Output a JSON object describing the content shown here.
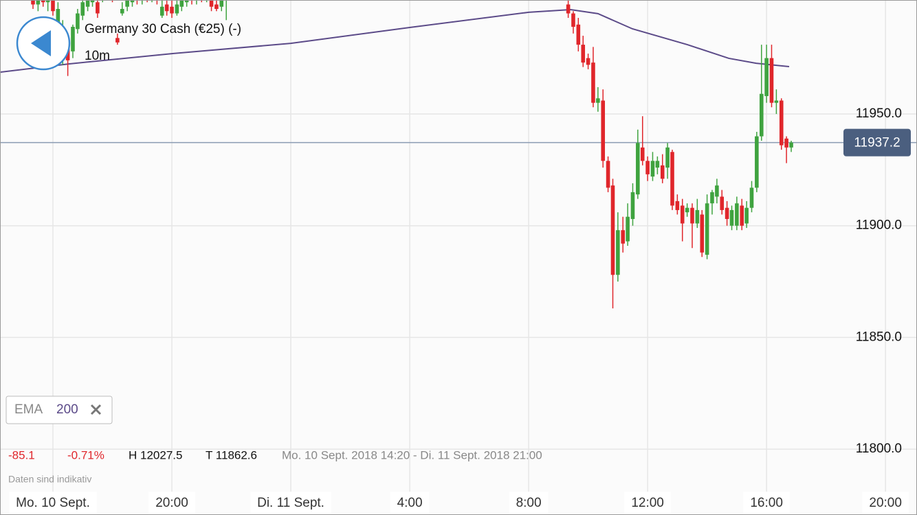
{
  "chart_data": {
    "type": "candlestick",
    "title": "Germany 30 Cash (€25) (-)",
    "interval": "10m",
    "indicator": {
      "name": "EMA",
      "period": "200",
      "color": "#5b4a88",
      "x": [
        14.22,
        16.53,
        20,
        24,
        28,
        32,
        33.41,
        34.33,
        35.49,
        37.34,
        38.73,
        39.65,
        40.76
      ],
      "values": [
        11968.7,
        11972.4,
        11977.0,
        11981.6,
        11988.7,
        11995.5,
        11996.7,
        11994.9,
        11988.1,
        11981.0,
        11974.9,
        11972.7,
        11971.2
      ]
    },
    "stats": {
      "change": "-85.1",
      "change_pct": "-0.71%",
      "high": "H 12027.5",
      "low": "T 11862.6",
      "range": "Mo. 10 Sept. 2018 14:20 - Di. 11 Sept. 2018 21:00",
      "note": "Daten sind indikativ"
    },
    "last_price": 11937.2,
    "up_color": "#3fa33f",
    "down_color": "#e0262b",
    "grid": true,
    "xlim": [
      14.22,
      45.06
    ],
    "xticks": [
      {
        "value": 16,
        "label": "Mo. 10 Sept."
      },
      {
        "value": 20,
        "label": "20:00"
      },
      {
        "value": 24,
        "label": "Di. 11 Sept."
      },
      {
        "value": 28,
        "label": "4:00"
      },
      {
        "value": 32,
        "label": "8:00"
      },
      {
        "value": 36,
        "label": "12:00"
      },
      {
        "value": 40,
        "label": "16:00"
      },
      {
        "value": 44,
        "label": "20:00"
      }
    ],
    "ylim": [
      11781.3,
      12001
    ],
    "yticks": [
      {
        "value": 11800,
        "label": "11800.0"
      },
      {
        "value": 11850,
        "label": "11850.0"
      },
      {
        "value": 11900,
        "label": "11900.0"
      },
      {
        "value": 11950,
        "label": "11950.0"
      }
    ],
    "x": [
      15.33,
      15.5,
      15.67,
      15.83,
      16,
      16.17,
      16.33,
      16.5,
      16.67,
      16.83,
      17,
      17.17,
      17.33,
      17.5,
      17.67,
      17.83,
      18,
      18.17,
      18.33,
      18.5,
      18.67,
      18.83,
      19,
      19.17,
      19.33,
      19.5,
      19.67,
      19.83,
      20,
      20.17,
      20.33,
      20.5,
      20.67,
      20.83,
      21,
      21.17,
      21.33,
      21.5,
      21.67,
      21.83,
      33.33,
      33.5,
      33.67,
      33.83,
      34,
      34.17,
      34.33,
      34.5,
      34.67,
      34.83,
      35,
      35.17,
      35.33,
      35.5,
      35.67,
      35.83,
      36,
      36.17,
      36.33,
      36.5,
      36.67,
      36.83,
      37,
      37.17,
      37.33,
      37.5,
      37.67,
      37.83,
      38,
      38.17,
      38.33,
      38.5,
      38.67,
      38.83,
      39,
      39.17,
      39.33,
      39.5,
      39.67,
      39.83,
      40,
      40.17,
      40.33,
      40.5,
      40.67,
      40.83
    ],
    "open": [
      12004,
      11999,
      12003,
      12000,
      12004,
      11990,
      11978,
      11980,
      11978,
      11988,
      11994,
      11998,
      12000,
      12000,
      12002,
      12003,
      12005,
      11984,
      11995,
      11998,
      12000,
      12003,
      12001,
      12004,
      12002,
      12005,
      11994,
      11999,
      11998,
      11995,
      11998,
      12000,
      12003,
      12001,
      12004,
      12002,
      12003,
      11999,
      11998,
      12001,
      11999,
      11995,
      11990,
      11981,
      11975,
      11973,
      11955,
      11956,
      11929,
      11918,
      11878,
      11898,
      11893,
      11903,
      11914,
      11935,
      11929,
      11922,
      11926,
      11927,
      11926,
      11933,
      11911,
      11909,
      11906,
      11908,
      11901,
      11905,
      11887,
      11910,
      11913,
      11913,
      11908,
      11900,
      11900,
      11909,
      11901,
      11908,
      11917,
      11940,
      11958,
      11975,
      11955,
      11956,
      11939,
      11935
    ],
    "high": [
      12006,
      12005,
      12006,
      12007,
      12006,
      12000,
      11992,
      11982,
      11990,
      11997,
      12002,
      12005,
      12006,
      12002,
      12006,
      12007,
      12007,
      11986,
      12000,
      12003,
      12005,
      12005,
      12006,
      12006,
      12007,
      12007,
      12001,
      12002,
      12001,
      12002,
      12003,
      12005,
      12005,
      12006,
      12006,
      12006,
      12005,
      12002,
      12004,
      12005,
      12001,
      11996,
      11993,
      11985,
      11977,
      11980,
      11962,
      11961,
      11931,
      11921,
      11906,
      11904,
      11910,
      11919,
      11943,
      11949,
      11931,
      11933,
      11931,
      11932,
      11937,
      11934,
      11914,
      11912,
      11910,
      11910,
      11912,
      11907,
      11914,
      11916,
      11921,
      11916,
      11911,
      11909,
      11913,
      11912,
      11911,
      11920,
      11942,
      11981,
      11981,
      11981,
      11961,
      11957,
      11940,
      11938
    ],
    "low": [
      11997,
      11996,
      11998,
      11996,
      11994,
      11985,
      11972,
      11967,
      11975,
      11986,
      11992,
      11996,
      11998,
      11993,
      12000,
      12001,
      12000,
      11981,
      11994,
      11996,
      11998,
      11999,
      11999,
      12000,
      12000,
      11999,
      11993,
      11994,
      11993,
      11994,
      11996,
      11998,
      11999,
      11999,
      12000,
      12000,
      11996,
      11996,
      11996,
      11992,
      11993,
      11986,
      11978,
      11971,
      11970,
      11953,
      11951,
      11926,
      11915,
      11863,
      11875,
      11888,
      11891,
      11900,
      11912,
      11927,
      11920,
      11920,
      11923,
      11919,
      11921,
      11907,
      11905,
      11893,
      11904,
      11890,
      11899,
      11886,
      11885,
      11905,
      11910,
      11905,
      11900,
      11898,
      11898,
      11898,
      11899,
      11906,
      11915,
      11938,
      11955,
      11953,
      11950,
      11934,
      11928,
      11933
    ],
    "close": [
      11999,
      12003,
      12000,
      12004,
      11996,
      11997,
      11989,
      11974,
      11989,
      11995,
      12000,
      12003,
      12004,
      11995,
      12004,
      12005,
      12002,
      11982,
      11997,
      12001,
      12003,
      12001,
      12004,
      12002,
      12005,
      12001,
      11998,
      11996,
      11995,
      11999,
      12001,
      12003,
      12001,
      12004,
      12002,
      12004,
      11998,
      11997,
      12002,
      12003,
      11995,
      11989,
      11981,
      11973,
      11972,
      11955,
      11957,
      11929,
      11917,
      11878,
      11898,
      11892,
      11904,
      11915,
      11937,
      11929,
      11923,
      11929,
      11929,
      11921,
      11935,
      11909,
      11907,
      11901,
      11908,
      11901,
      11907,
      11888,
      11910,
      11915,
      11918,
      11907,
      11903,
      11907,
      11910,
      11900,
      11908,
      11917,
      11940,
      11959,
      11975,
      11955,
      11956,
      11936,
      11935,
      11937.2
    ]
  }
}
